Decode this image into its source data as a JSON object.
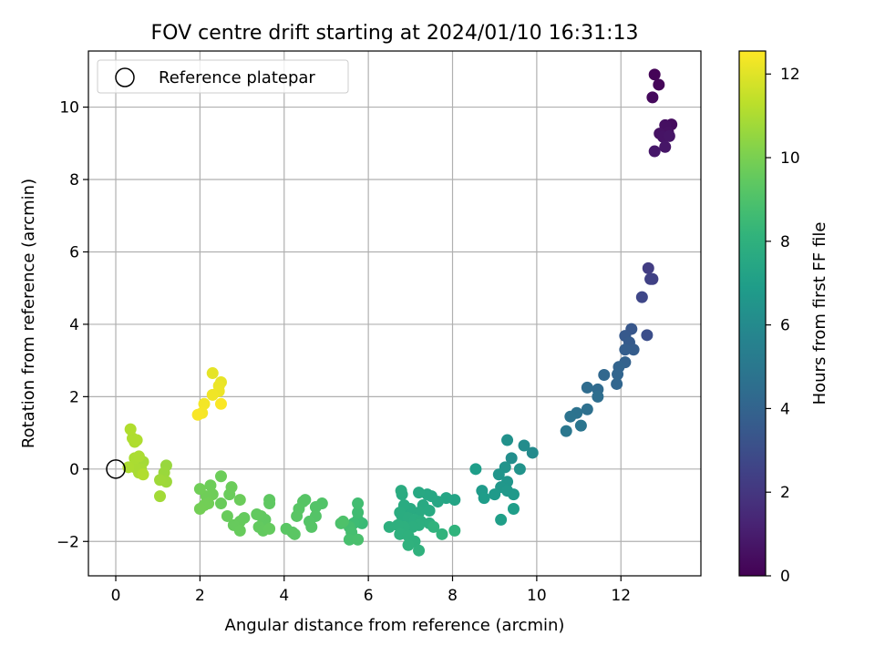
{
  "chart_data": {
    "type": "scatter",
    "title": "FOV centre drift starting at 2024/01/10 16:31:13",
    "xlabel": "Angular distance from reference (arcmin)",
    "ylabel": "Rotation from reference (arcmin)",
    "xlim": [
      -0.65,
      13.9
    ],
    "ylim": [
      -2.95,
      11.55
    ],
    "xticks": [
      0,
      2,
      4,
      6,
      8,
      10,
      12
    ],
    "yticks": [
      -2,
      0,
      2,
      4,
      6,
      8,
      10
    ],
    "grid": true,
    "legend": {
      "position": "top-left",
      "entries": [
        "Reference platepar"
      ]
    },
    "colorbar": {
      "label": "Hours from first FF file",
      "colormap": "viridis",
      "range": [
        0,
        12.55
      ],
      "ticks": [
        0,
        2,
        4,
        6,
        8,
        10,
        12
      ]
    },
    "reference_point": {
      "x": 0,
      "y": 0
    },
    "points": [
      [
        12.8,
        10.9,
        0.1
      ],
      [
        12.9,
        10.62,
        0.2
      ],
      [
        12.75,
        10.27,
        0.3
      ],
      [
        13.2,
        9.52,
        0.4
      ],
      [
        13.05,
        9.5,
        0.5
      ],
      [
        13.12,
        9.3,
        0.55
      ],
      [
        12.92,
        9.27,
        0.6
      ],
      [
        13.0,
        9.18,
        0.65
      ],
      [
        13.15,
        9.2,
        0.7
      ],
      [
        13.05,
        8.9,
        0.75
      ],
      [
        12.8,
        8.78,
        0.8
      ],
      [
        12.65,
        5.55,
        2.3
      ],
      [
        12.75,
        5.25,
        2.4
      ],
      [
        12.7,
        5.25,
        2.45
      ],
      [
        12.5,
        4.75,
        2.7
      ],
      [
        12.62,
        3.7,
        3.0
      ],
      [
        12.25,
        3.87,
        3.4
      ],
      [
        12.1,
        3.68,
        3.5
      ],
      [
        12.2,
        3.5,
        3.6
      ],
      [
        12.3,
        3.3,
        3.7
      ],
      [
        12.1,
        3.3,
        3.75
      ],
      [
        12.1,
        2.95,
        3.9
      ],
      [
        11.95,
        2.82,
        4.0
      ],
      [
        11.92,
        2.62,
        4.05
      ],
      [
        11.9,
        2.35,
        4.1
      ],
      [
        11.6,
        2.6,
        4.2
      ],
      [
        11.45,
        2.2,
        4.35
      ],
      [
        11.2,
        2.25,
        4.4
      ],
      [
        11.45,
        2.0,
        4.5
      ],
      [
        11.2,
        1.65,
        4.6
      ],
      [
        10.95,
        1.55,
        4.7
      ],
      [
        10.8,
        1.45,
        4.8
      ],
      [
        11.05,
        1.2,
        4.9
      ],
      [
        10.7,
        1.05,
        5.0
      ],
      [
        9.9,
        0.45,
        6.0
      ],
      [
        9.7,
        0.65,
        6.1
      ],
      [
        9.4,
        0.3,
        6.2
      ],
      [
        9.3,
        0.8,
        6.3
      ],
      [
        9.6,
        0.0,
        6.4
      ],
      [
        9.25,
        0.05,
        6.45
      ],
      [
        9.1,
        -0.15,
        6.5
      ],
      [
        9.3,
        -0.35,
        6.55
      ],
      [
        9.15,
        -0.5,
        6.6
      ],
      [
        9.3,
        -0.6,
        6.65
      ],
      [
        9.45,
        -0.7,
        6.7
      ],
      [
        9.0,
        -0.7,
        6.75
      ],
      [
        8.7,
        -0.6,
        6.8
      ],
      [
        8.75,
        -0.8,
        6.9
      ],
      [
        8.55,
        0.0,
        6.95
      ],
      [
        9.45,
        -1.1,
        7.0
      ],
      [
        9.15,
        -1.4,
        7.05
      ],
      [
        8.05,
        -0.85,
        7.3
      ],
      [
        7.85,
        -0.8,
        7.35
      ],
      [
        7.65,
        -0.9,
        7.4
      ],
      [
        7.5,
        -0.75,
        7.45
      ],
      [
        7.4,
        -0.7,
        7.5
      ],
      [
        7.2,
        -0.65,
        7.55
      ],
      [
        7.3,
        -1.0,
        7.6
      ],
      [
        7.45,
        -1.15,
        7.62
      ],
      [
        7.2,
        -1.2,
        7.64
      ],
      [
        7.0,
        -1.1,
        7.66
      ],
      [
        6.85,
        -1.0,
        7.68
      ],
      [
        6.8,
        -0.7,
        7.7
      ],
      [
        6.78,
        -0.6,
        7.72
      ],
      [
        6.75,
        -1.2,
        7.74
      ],
      [
        6.8,
        -1.3,
        7.76
      ],
      [
        6.95,
        -1.35,
        7.78
      ],
      [
        7.1,
        -1.4,
        7.8
      ],
      [
        7.25,
        -1.45,
        7.82
      ],
      [
        7.45,
        -1.5,
        7.84
      ],
      [
        7.2,
        -1.55,
        7.86
      ],
      [
        7.05,
        -1.6,
        7.88
      ],
      [
        6.85,
        -1.6,
        7.9
      ],
      [
        6.7,
        -1.55,
        7.92
      ],
      [
        6.5,
        -1.6,
        7.94
      ],
      [
        6.75,
        -1.8,
        7.96
      ],
      [
        6.95,
        -1.85,
        7.98
      ],
      [
        7.1,
        -2.0,
        8.0
      ],
      [
        7.2,
        -2.25,
        8.02
      ],
      [
        6.95,
        -2.1,
        8.04
      ],
      [
        7.55,
        -1.6,
        8.06
      ],
      [
        7.75,
        -1.8,
        8.1
      ],
      [
        8.05,
        -1.7,
        8.12
      ],
      [
        5.85,
        -1.5,
        8.5
      ],
      [
        5.75,
        -1.4,
        8.55
      ],
      [
        5.65,
        -1.5,
        8.6
      ],
      [
        5.75,
        -1.2,
        8.65
      ],
      [
        5.75,
        -0.95,
        8.7
      ],
      [
        5.55,
        -1.6,
        8.75
      ],
      [
        5.6,
        -1.75,
        8.8
      ],
      [
        5.55,
        -1.95,
        8.85
      ],
      [
        5.75,
        -1.95,
        8.9
      ],
      [
        5.35,
        -1.5,
        8.95
      ],
      [
        5.4,
        -1.45,
        9.0
      ],
      [
        4.9,
        -0.95,
        9.1
      ],
      [
        4.75,
        -1.05,
        9.12
      ],
      [
        4.75,
        -1.3,
        9.14
      ],
      [
        4.6,
        -1.45,
        9.16
      ],
      [
        4.65,
        -1.6,
        9.18
      ],
      [
        4.5,
        -0.85,
        9.2
      ],
      [
        4.45,
        -0.9,
        9.22
      ],
      [
        4.35,
        -1.1,
        9.24
      ],
      [
        4.3,
        -1.3,
        9.26
      ],
      [
        4.2,
        -1.75,
        9.28
      ],
      [
        4.05,
        -1.65,
        9.3
      ],
      [
        4.25,
        -1.8,
        9.32
      ],
      [
        3.65,
        -0.85,
        9.4
      ],
      [
        3.65,
        -0.95,
        9.42
      ],
      [
        3.55,
        -1.4,
        9.44
      ],
      [
        3.45,
        -1.3,
        9.46
      ],
      [
        3.35,
        -1.25,
        9.48
      ],
      [
        3.4,
        -1.6,
        9.5
      ],
      [
        3.5,
        -1.7,
        9.52
      ],
      [
        3.65,
        -1.65,
        9.54
      ],
      [
        3.05,
        -1.35,
        9.56
      ],
      [
        2.95,
        -1.45,
        9.58
      ],
      [
        2.8,
        -1.55,
        9.6
      ],
      [
        2.95,
        -1.7,
        9.62
      ],
      [
        2.65,
        -1.3,
        9.64
      ],
      [
        2.5,
        -0.95,
        9.66
      ],
      [
        2.7,
        -0.7,
        9.68
      ],
      [
        2.75,
        -0.5,
        9.7
      ],
      [
        2.95,
        -0.85,
        9.72
      ],
      [
        2.5,
        -0.2,
        9.74
      ],
      [
        2.25,
        -0.45,
        9.76
      ],
      [
        2.3,
        -0.7,
        9.78
      ],
      [
        2.15,
        -0.75,
        9.8
      ],
      [
        2.0,
        -0.55,
        9.82
      ],
      [
        2.2,
        -0.95,
        9.84
      ],
      [
        2.1,
        -1.0,
        9.86
      ],
      [
        2.0,
        -1.1,
        9.88
      ],
      [
        1.2,
        0.1,
        10.6
      ],
      [
        1.15,
        -0.1,
        10.65
      ],
      [
        1.2,
        -0.35,
        10.7
      ],
      [
        1.05,
        -0.3,
        10.75
      ],
      [
        1.05,
        -0.75,
        10.8
      ],
      [
        0.65,
        0.2,
        10.85
      ],
      [
        0.6,
        0.0,
        10.9
      ],
      [
        0.55,
        -0.1,
        10.92
      ],
      [
        0.45,
        0.05,
        10.94
      ],
      [
        0.45,
        0.3,
        10.96
      ],
      [
        0.55,
        0.35,
        10.98
      ],
      [
        0.3,
        0.05,
        11.0
      ],
      [
        0.45,
        0.75,
        11.02
      ],
      [
        0.4,
        0.85,
        11.04
      ],
      [
        0.5,
        0.8,
        11.06
      ],
      [
        0.35,
        1.1,
        11.08
      ],
      [
        0.65,
        -0.15,
        11.1
      ],
      [
        2.3,
        2.65,
        12.1
      ],
      [
        2.5,
        2.4,
        12.15
      ],
      [
        2.45,
        2.3,
        12.2
      ],
      [
        2.45,
        2.15,
        12.25
      ],
      [
        2.3,
        2.05,
        12.3
      ],
      [
        2.1,
        1.8,
        12.35
      ],
      [
        2.05,
        1.55,
        12.4
      ],
      [
        1.95,
        1.5,
        12.45
      ],
      [
        2.5,
        1.8,
        12.5
      ]
    ]
  }
}
